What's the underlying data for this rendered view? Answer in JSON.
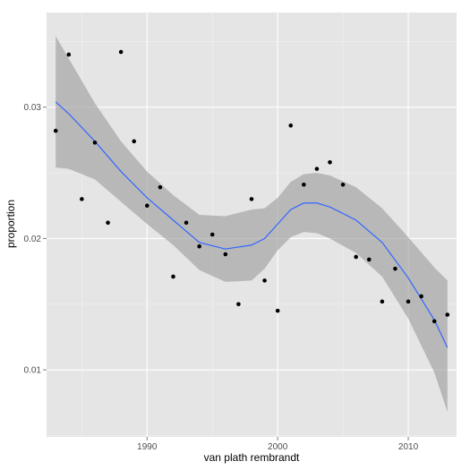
{
  "chart_data": {
    "type": "scatter",
    "title": "",
    "xlabel": "van plath rembrandt",
    "ylabel": "proportion",
    "xlim": [
      1982.3,
      2013.7
    ],
    "ylim": [
      0.0049,
      0.0372
    ],
    "x_ticks": [
      1990,
      2000,
      2010
    ],
    "x_tick_labels": [
      "1990",
      "2000",
      "2010"
    ],
    "y_ticks": [
      0.01,
      0.02,
      0.03
    ],
    "y_tick_labels": [
      "0.01",
      "0.02",
      "0.03"
    ],
    "grid": true,
    "legend": "none",
    "colors": {
      "panel": "#e5e5e5",
      "grid_major": "#ffffff",
      "grid_minor": "#f2f2f2",
      "points": "#000000",
      "smooth_line": "#3366ff",
      "ribbon": "#999999"
    },
    "points": {
      "x": [
        1983,
        1984,
        1985,
        1986,
        1987,
        1988,
        1989,
        1990,
        1991,
        1992,
        1993,
        1994,
        1995,
        1996,
        1997,
        1998,
        1999,
        2000,
        2001,
        2002,
        2003,
        2004,
        2005,
        2006,
        2007,
        2008,
        2009,
        2010,
        2011,
        2012,
        2013
      ],
      "y": [
        0.0282,
        0.034,
        0.023,
        0.0273,
        0.0212,
        0.0342,
        0.0274,
        0.0225,
        0.0239,
        0.0171,
        0.0212,
        0.0194,
        0.0203,
        0.0188,
        0.015,
        0.023,
        0.0168,
        0.0145,
        0.0286,
        0.0241,
        0.0253,
        0.0258,
        0.0241,
        0.0186,
        0.0184,
        0.0152,
        0.0177,
        0.0152,
        0.0156,
        0.0137,
        0.0142
      ]
    },
    "smooth": {
      "x": [
        1983,
        1984,
        1986,
        1988,
        1990,
        1992,
        1994,
        1996,
        1998,
        1999,
        2000,
        2001,
        2002,
        2003,
        2004,
        2006,
        2008,
        2010,
        2012,
        2013
      ],
      "y": [
        0.0304,
        0.0295,
        0.0274,
        0.0251,
        0.0231,
        0.0214,
        0.0197,
        0.0192,
        0.0195,
        0.02,
        0.0211,
        0.0222,
        0.0227,
        0.0227,
        0.0224,
        0.0214,
        0.0197,
        0.017,
        0.0138,
        0.0117
      ],
      "lower": [
        0.0254,
        0.0253,
        0.0245,
        0.0228,
        0.0211,
        0.0195,
        0.0176,
        0.0167,
        0.0168,
        0.0177,
        0.0191,
        0.0201,
        0.0205,
        0.0204,
        0.02,
        0.0189,
        0.0171,
        0.0139,
        0.0098,
        0.0068
      ],
      "upper": [
        0.0354,
        0.0337,
        0.0303,
        0.0274,
        0.0251,
        0.0233,
        0.0218,
        0.0217,
        0.0222,
        0.0223,
        0.0231,
        0.0243,
        0.0249,
        0.025,
        0.0248,
        0.0239,
        0.0223,
        0.0201,
        0.0178,
        0.0168
      ]
    }
  }
}
